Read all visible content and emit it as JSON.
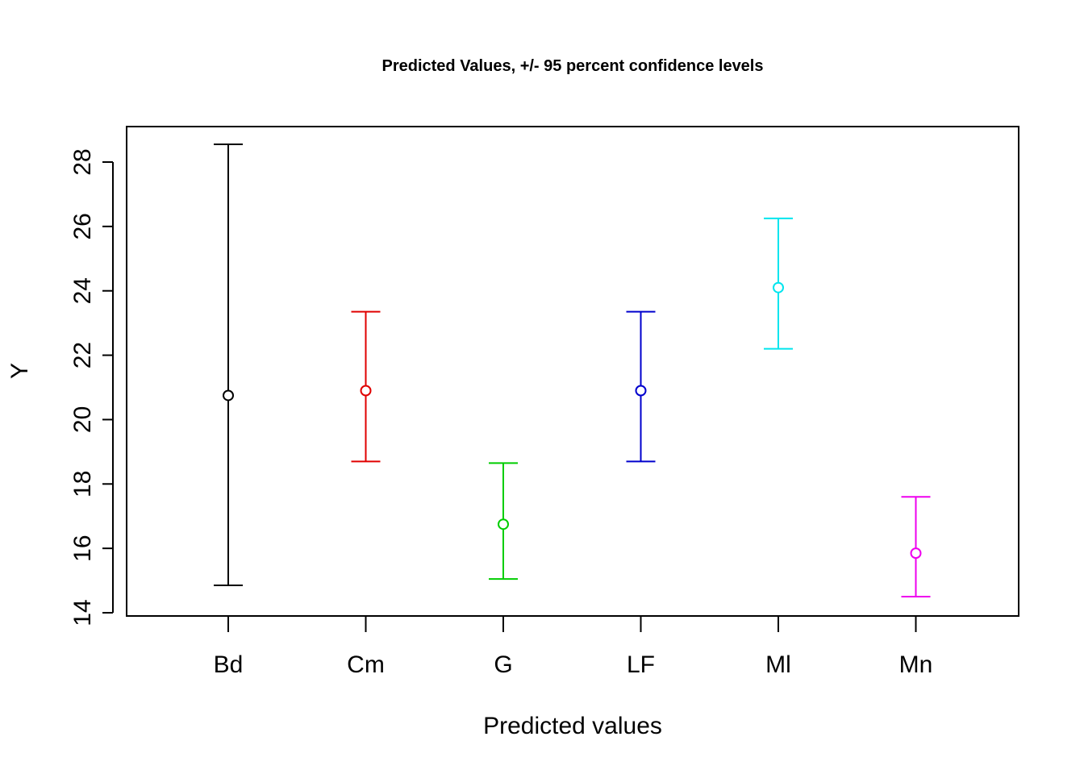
{
  "chart_data": {
    "type": "errorbar",
    "title": "Predicted Values, +/- 95 percent confidence levels",
    "xlabel": "Predicted values",
    "ylabel": "Y",
    "ylim": [
      14,
      29
    ],
    "yticks": [
      14,
      16,
      18,
      20,
      22,
      24,
      26,
      28
    ],
    "grid": false,
    "categories": [
      "Bd",
      "Cm",
      "G",
      "LF",
      "Ml",
      "Mn"
    ],
    "values": [
      20.75,
      20.9,
      16.75,
      20.9,
      24.1,
      15.85
    ],
    "lower": [
      14.85,
      18.7,
      15.05,
      18.7,
      22.2,
      14.5
    ],
    "upper": [
      28.55,
      23.35,
      18.65,
      23.35,
      26.25,
      17.6
    ],
    "colors": [
      "#000000",
      "#e00000",
      "#00cd00",
      "#0000cd",
      "#00e5ee",
      "#ee00ee"
    ]
  }
}
